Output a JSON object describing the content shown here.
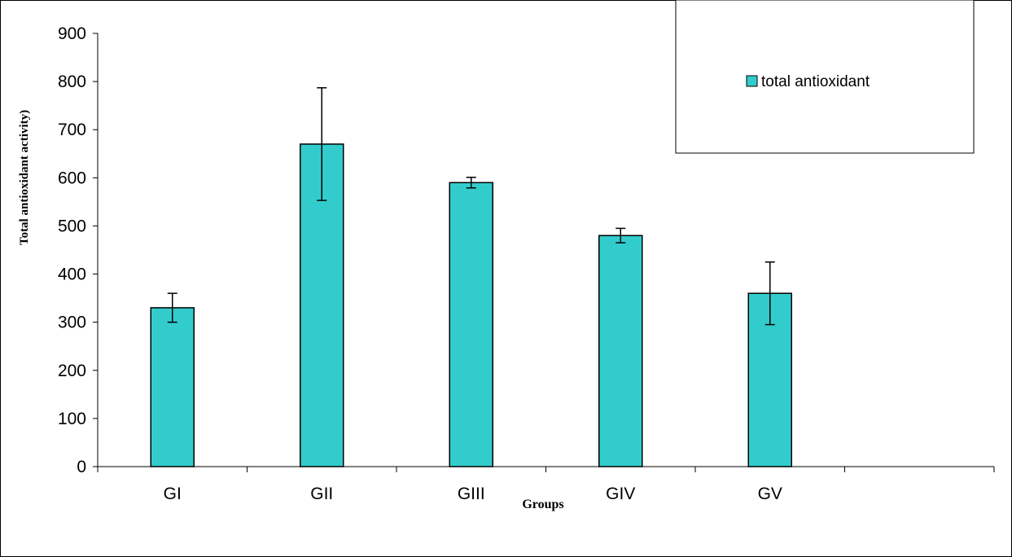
{
  "chart_data": {
    "type": "bar",
    "title": "",
    "xlabel": "Groups",
    "ylabel": "Total antioxidant activity)",
    "categories": [
      "GI",
      "GII",
      "GIII",
      "GIV",
      "GV"
    ],
    "series": [
      {
        "name": "total antioxidant",
        "values": [
          330,
          670,
          590,
          480,
          360
        ],
        "error": [
          30,
          117,
          11,
          15,
          65
        ]
      }
    ],
    "ylim": [
      0,
      900
    ],
    "yticks": [
      0,
      100,
      200,
      300,
      400,
      500,
      600,
      700,
      800,
      900
    ],
    "grid": false,
    "legend": "top-right",
    "colors": {
      "bar": "#33CCCC",
      "stroke": "#000000"
    }
  }
}
